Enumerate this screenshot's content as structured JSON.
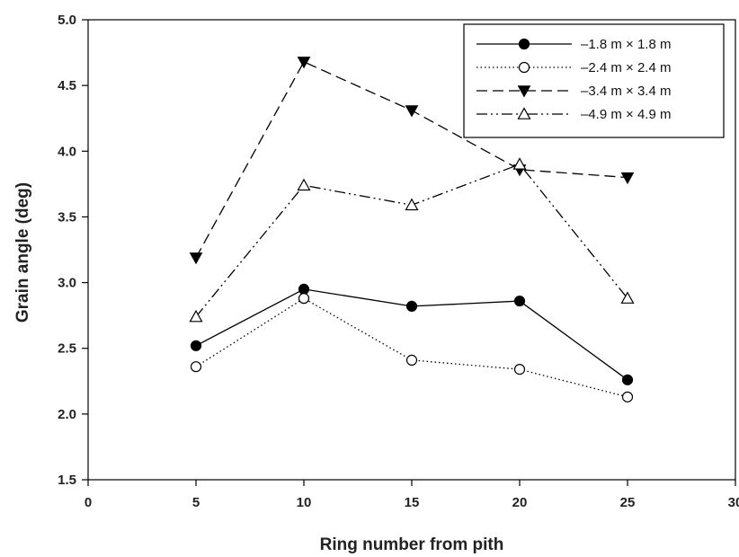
{
  "chart_data": {
    "type": "line",
    "xlabel": "Ring number from pith",
    "ylabel": "Grain angle (deg)",
    "xlim": [
      0,
      30
    ],
    "ylim": [
      1.5,
      5.0
    ],
    "x_ticks": [
      "0",
      "5",
      "10",
      "15",
      "20",
      "25",
      "30"
    ],
    "y_ticks": [
      "1.5",
      "2.0",
      "2.5",
      "3.0",
      "3.5",
      "4.0",
      "4.5",
      "5.0"
    ],
    "grid": false,
    "legend_position": "top-right",
    "x": [
      5,
      10,
      15,
      20,
      25
    ],
    "series": [
      {
        "name": "–1.8 m × 1.8 m",
        "values": [
          2.52,
          2.95,
          2.82,
          2.86,
          2.26
        ],
        "line": "solid",
        "marker": "filled-circle",
        "color": "#000000"
      },
      {
        "name": "–2.4 m × 2.4 m",
        "values": [
          2.36,
          2.88,
          2.41,
          2.34,
          2.13
        ],
        "line": "dotted",
        "marker": "open-circle",
        "color": "#000000"
      },
      {
        "name": "–3.4 m × 3.4 m",
        "values": [
          3.19,
          4.68,
          4.31,
          3.86,
          3.8
        ],
        "line": "dashed",
        "marker": "filled-triangle-down",
        "color": "#000000"
      },
      {
        "name": "–4.9 m × 4.9 m",
        "values": [
          2.74,
          3.74,
          3.59,
          3.9,
          2.88
        ],
        "line": "dash-dot-dot",
        "marker": "open-triangle-up",
        "color": "#000000"
      }
    ]
  }
}
